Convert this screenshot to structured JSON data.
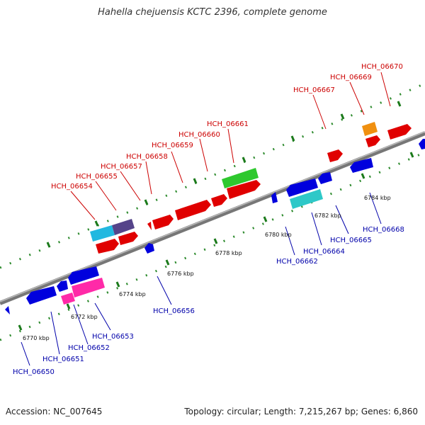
{
  "title": "Hahella chejuensis KCTC 2396, complete genome",
  "footer": {
    "accession": "Accession: NC_007645",
    "stats": "Topology: circular; Length: 7,215,267 bp; Genes: 6,860"
  },
  "colors": {
    "backbone": "#888888",
    "top_label": "#cc0000",
    "bottom_label": "#0000aa",
    "dots": "#2e8b2e"
  },
  "scale_labels": [
    "6770 kbp",
    "6772 kbp",
    "6774 kbp",
    "6776 kbp",
    "6778 kbp",
    "6780 kbp",
    "6782 kbp",
    "6784 kbp"
  ],
  "top_gene_labels": [
    "HCH_06654",
    "HCH_06655",
    "HCH_06657",
    "HCH_06658",
    "HCH_06659",
    "HCH_06660",
    "HCH_06661",
    "HCH_06667",
    "HCH_06669",
    "HCH_06670"
  ],
  "bottom_gene_labels": [
    "HCH_06650",
    "HCH_06651",
    "HCH_06652",
    "HCH_06653",
    "HCH_06656",
    "HCH_06662",
    "HCH_06664",
    "HCH_06665",
    "HCH_06668"
  ]
}
